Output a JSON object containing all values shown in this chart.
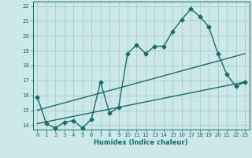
{
  "title": "",
  "xlabel": "Humidex (Indice chaleur)",
  "bg_color": "#cce8e8",
  "grid_color": "#aacccc",
  "line_color": "#1a6b6b",
  "xlim": [
    -0.5,
    23.5
  ],
  "ylim": [
    13.7,
    22.3
  ],
  "xticks": [
    0,
    1,
    2,
    3,
    4,
    5,
    6,
    7,
    8,
    9,
    10,
    11,
    12,
    13,
    14,
    15,
    16,
    17,
    18,
    19,
    20,
    21,
    22,
    23
  ],
  "yticks": [
    14,
    15,
    16,
    17,
    18,
    19,
    20,
    21,
    22
  ],
  "line1_x": [
    0,
    1,
    2,
    3,
    4,
    5,
    6,
    7,
    8,
    9,
    10,
    11,
    12,
    13,
    14,
    15,
    16,
    17,
    18,
    19,
    20,
    21,
    22,
    23
  ],
  "line1_y": [
    15.9,
    14.1,
    13.8,
    14.2,
    14.3,
    13.8,
    14.4,
    16.9,
    14.8,
    15.2,
    18.8,
    19.4,
    18.8,
    19.3,
    19.3,
    20.3,
    21.1,
    21.8,
    21.3,
    20.6,
    18.8,
    17.4,
    16.6,
    16.9
  ],
  "line2_x": [
    0,
    23
  ],
  "line2_y": [
    14.1,
    16.9
  ],
  "line3_x": [
    0,
    23
  ],
  "line3_y": [
    15.0,
    18.8
  ],
  "marker": "D",
  "markersize": 2.5,
  "linewidth": 1.0,
  "tick_fontsize": 5.0,
  "xlabel_fontsize": 6.0
}
